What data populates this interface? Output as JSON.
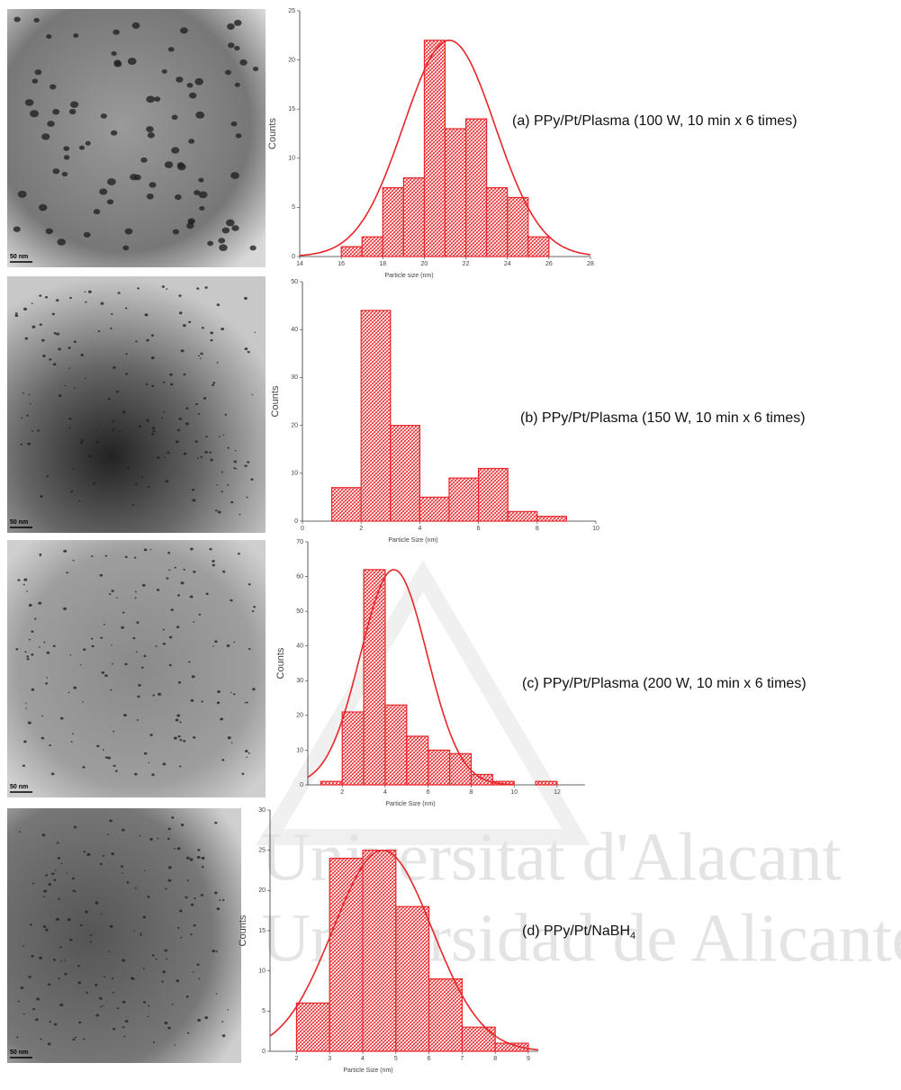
{
  "chart_data": [
    {
      "type": "histogram",
      "caption": "(a) PPy/Pt/Plasma (100 W, 10 min x 6 times)",
      "scale_label": "50 nm",
      "xlabel": "Particle size (nm)",
      "ylabel": "Counts",
      "color": "#e8262a",
      "bins": [
        16,
        17,
        18,
        19,
        20,
        21,
        22,
        23,
        24,
        25,
        26
      ],
      "values": [
        1,
        2,
        7,
        8,
        22,
        13,
        14,
        7,
        6,
        2
      ],
      "fit": {
        "mean": 21.2,
        "sd": 2.2,
        "peak": 22
      },
      "xlim": [
        14,
        28
      ],
      "xticks": [
        14,
        16,
        18,
        20,
        22,
        24,
        26,
        28
      ],
      "ylim": [
        0,
        25
      ],
      "yticks": [
        0,
        5,
        10,
        15,
        20,
        25
      ]
    },
    {
      "type": "histogram",
      "caption": "(b) PPy/Pt/Plasma (150 W, 10 min x 6 times)",
      "scale_label": "50 nm",
      "xlabel": "Particle Size (nm)",
      "ylabel": "Counts",
      "color": "#e8262a",
      "bins": [
        1,
        2,
        3,
        4,
        5,
        6,
        7,
        8,
        9
      ],
      "values": [
        7,
        44,
        20,
        5,
        9,
        11,
        2,
        1
      ],
      "xlim": [
        0,
        10
      ],
      "xticks": [
        0,
        2,
        4,
        6,
        8,
        10
      ],
      "ylim": [
        0,
        50
      ],
      "yticks": [
        0,
        10,
        20,
        30,
        40,
        50
      ]
    },
    {
      "type": "histogram",
      "caption": "(c) PPy/Pt/Plasma (200 W, 10 min x 6 times)",
      "scale_label": "50 nm",
      "xlabel": "Particle Size (nm)",
      "ylabel": "Counts",
      "color": "#e8262a",
      "bins": [
        1,
        2,
        3,
        4,
        5,
        6,
        7,
        8,
        9,
        10,
        11,
        12
      ],
      "values": [
        1,
        21,
        62,
        23,
        14,
        10,
        9,
        3,
        1,
        0,
        1
      ],
      "fit": {
        "mean": 4.4,
        "sd": 1.55,
        "peak": 62
      },
      "xlim": [
        0.4,
        13.3
      ],
      "xticks": [
        2,
        4,
        6,
        8,
        10,
        12
      ],
      "ylim": [
        0,
        70
      ],
      "yticks": [
        0,
        10,
        20,
        30,
        40,
        50,
        60,
        70
      ]
    },
    {
      "type": "histogram",
      "caption": "(d) PPy/Pt/NaBH",
      "caption_subscript": "4",
      "scale_label": "50 nm",
      "xlabel": "Particle Size (nm)",
      "ylabel": "Counts",
      "color": "#e8262a",
      "bins": [
        2,
        3,
        4,
        5,
        6,
        7,
        8,
        9
      ],
      "values": [
        6,
        24,
        25,
        18,
        9,
        3,
        1
      ],
      "fit": {
        "mean": 4.6,
        "sd": 1.5,
        "peak": 25
      },
      "xlim": [
        1.2,
        9.3
      ],
      "xticks": [
        2,
        3,
        4,
        5,
        6,
        7,
        8,
        9
      ],
      "ylim": [
        0,
        30
      ],
      "yticks": [
        0,
        5,
        10,
        15,
        20,
        25,
        30
      ]
    }
  ],
  "watermark": [
    "Universitat d'Alacant",
    "Universidad de Alicante"
  ]
}
